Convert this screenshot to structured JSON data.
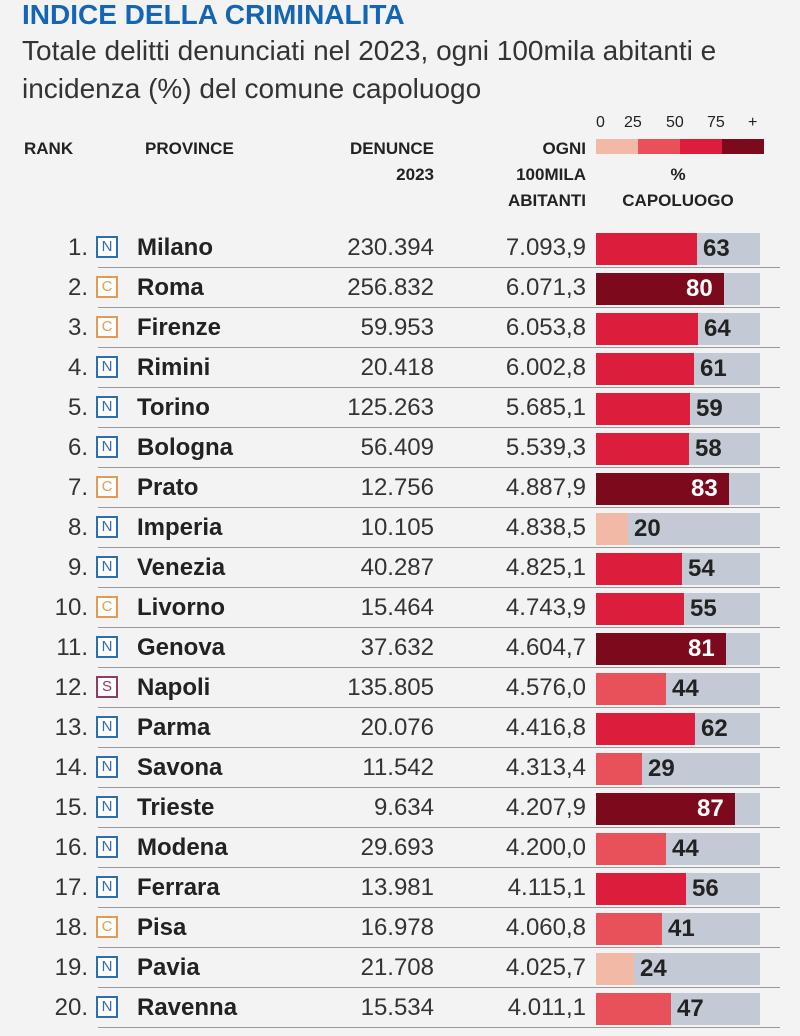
{
  "title": "INDICE DELLA CRIMINALITA",
  "subtitle": "Totale delitti denunciati nel 2023, ogni 100mila abitanti e incidenza (%) del comune capoluogo",
  "headers": {
    "rank": "RANK",
    "province": "PROVINCE",
    "denunce_line1": "DENUNCE",
    "denunce_line2": "2023",
    "ogni_line1": "OGNI",
    "ogni_line2": "100MILA",
    "ogni_line3": "ABITANTI",
    "pct_line1": "%",
    "pct_line2": "CAPOLUOGO"
  },
  "legend": {
    "labels": [
      "0",
      "25",
      "50",
      "75",
      "+"
    ],
    "colors": [
      "#f2b9a7",
      "#e8505a",
      "#dc1d3c",
      "#7c0a1c"
    ]
  },
  "badge_colors": {
    "N": "#2f6db3",
    "C": "#e59a52",
    "S": "#8e3b6a"
  },
  "bar_bg": "#c3cad6",
  "rows": [
    {
      "rank": "1.",
      "badge": "N",
      "province": "Milano",
      "denunce": "230.394",
      "ogni": "7.093,9",
      "pct": 63
    },
    {
      "rank": "2.",
      "badge": "C",
      "province": "Roma",
      "denunce": "256.832",
      "ogni": "6.071,3",
      "pct": 80
    },
    {
      "rank": "3.",
      "badge": "C",
      "province": "Firenze",
      "denunce": "59.953",
      "ogni": "6.053,8",
      "pct": 64
    },
    {
      "rank": "4.",
      "badge": "N",
      "province": "Rimini",
      "denunce": "20.418",
      "ogni": "6.002,8",
      "pct": 61
    },
    {
      "rank": "5.",
      "badge": "N",
      "province": "Torino",
      "denunce": "125.263",
      "ogni": "5.685,1",
      "pct": 59
    },
    {
      "rank": "6.",
      "badge": "N",
      "province": "Bologna",
      "denunce": "56.409",
      "ogni": "5.539,3",
      "pct": 58
    },
    {
      "rank": "7.",
      "badge": "C",
      "province": "Prato",
      "denunce": "12.756",
      "ogni": "4.887,9",
      "pct": 83
    },
    {
      "rank": "8.",
      "badge": "N",
      "province": "Imperia",
      "denunce": "10.105",
      "ogni": "4.838,5",
      "pct": 20
    },
    {
      "rank": "9.",
      "badge": "N",
      "province": "Venezia",
      "denunce": "40.287",
      "ogni": "4.825,1",
      "pct": 54
    },
    {
      "rank": "10.",
      "badge": "C",
      "province": "Livorno",
      "denunce": "15.464",
      "ogni": "4.743,9",
      "pct": 55
    },
    {
      "rank": "11.",
      "badge": "N",
      "province": "Genova",
      "denunce": "37.632",
      "ogni": "4.604,7",
      "pct": 81
    },
    {
      "rank": "12.",
      "badge": "S",
      "province": "Napoli",
      "denunce": "135.805",
      "ogni": "4.576,0",
      "pct": 44
    },
    {
      "rank": "13.",
      "badge": "N",
      "province": "Parma",
      "denunce": "20.076",
      "ogni": "4.416,8",
      "pct": 62
    },
    {
      "rank": "14.",
      "badge": "N",
      "province": "Savona",
      "denunce": "11.542",
      "ogni": "4.313,4",
      "pct": 29
    },
    {
      "rank": "15.",
      "badge": "N",
      "province": "Trieste",
      "denunce": "9.634",
      "ogni": "4.207,9",
      "pct": 87
    },
    {
      "rank": "16.",
      "badge": "N",
      "province": "Modena",
      "denunce": "29.693",
      "ogni": "4.200,0",
      "pct": 44
    },
    {
      "rank": "17.",
      "badge": "N",
      "province": "Ferrara",
      "denunce": "13.981",
      "ogni": "4.115,1",
      "pct": 56
    },
    {
      "rank": "18.",
      "badge": "C",
      "province": "Pisa",
      "denunce": "16.978",
      "ogni": "4.060,8",
      "pct": 41
    },
    {
      "rank": "19.",
      "badge": "N",
      "province": "Pavia",
      "denunce": "21.708",
      "ogni": "4.025,7",
      "pct": 24
    },
    {
      "rank": "20.",
      "badge": "N",
      "province": "Ravenna",
      "denunce": "15.534",
      "ogni": "4.011,1",
      "pct": 47
    }
  ]
}
